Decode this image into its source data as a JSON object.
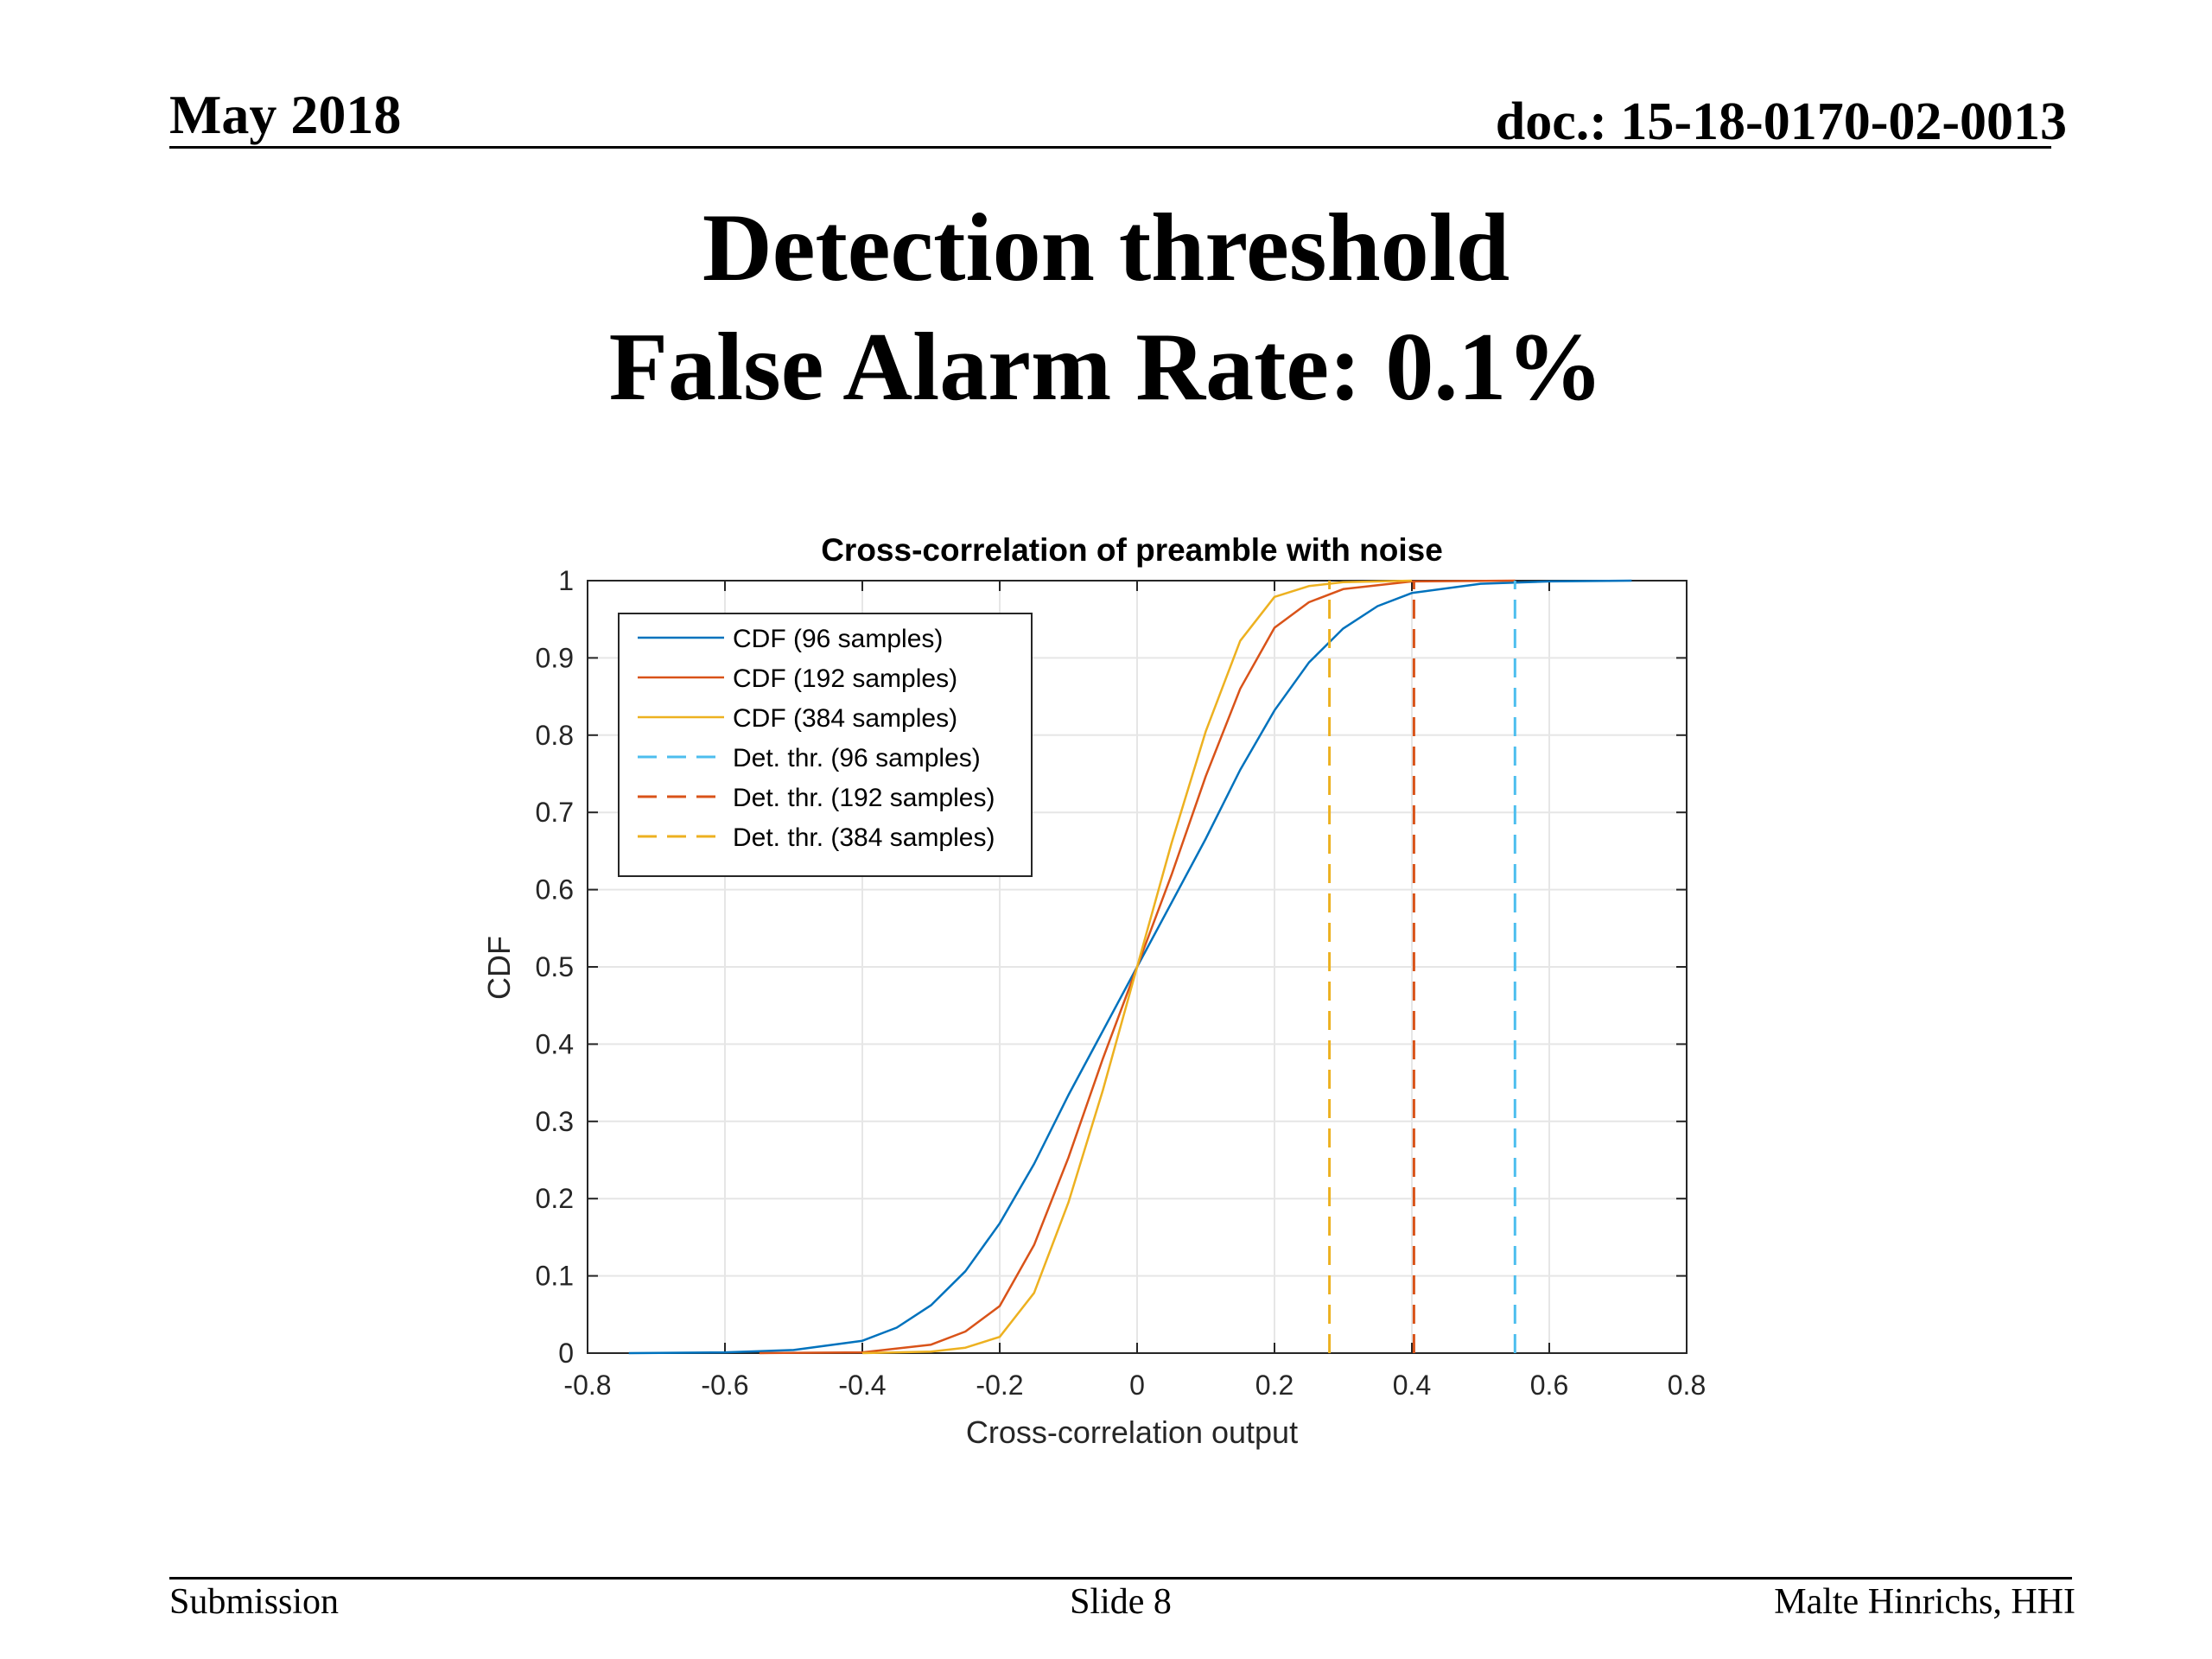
{
  "header": {
    "date": "May 2018",
    "doc": "doc.: 15-18-0170-02-0013"
  },
  "slide_title": {
    "line1": "Detection threshold",
    "line2": "False Alarm Rate: 0.1%"
  },
  "footer": {
    "left": "Submission",
    "center": "Slide 8",
    "right": "Malte Hinrichs, HHI"
  },
  "chart_data": {
    "type": "line",
    "title": "Cross-correlation of preamble with noise",
    "xlabel": "Cross-correlation output",
    "ylabel": "CDF",
    "xlim": [
      -0.8,
      0.8
    ],
    "ylim": [
      0,
      1
    ],
    "xticks": [
      -0.8,
      -0.6,
      -0.4,
      -0.2,
      0,
      0.2,
      0.4,
      0.6,
      0.8
    ],
    "xtick_labels": [
      "-0.8",
      "-0.6",
      "-0.4",
      "-0.2",
      "0",
      "0.2",
      "0.4",
      "0.6",
      "0.8"
    ],
    "yticks": [
      0,
      0.1,
      0.2,
      0.3,
      0.4,
      0.5,
      0.6,
      0.7,
      0.8,
      0.9,
      1
    ],
    "ytick_labels": [
      "0",
      "0.1",
      "0.2",
      "0.3",
      "0.4",
      "0.5",
      "0.6",
      "0.7",
      "0.8",
      "0.9",
      "1"
    ],
    "grid": true,
    "legend_position": "top-left",
    "series": [
      {
        "name": "CDF (96 samples)",
        "color": "#0072BD",
        "style": "solid",
        "x": [
          -0.74,
          -0.6,
          -0.5,
          -0.4,
          -0.35,
          -0.3,
          -0.25,
          -0.2,
          -0.15,
          -0.1,
          -0.05,
          0,
          0.05,
          0.1,
          0.15,
          0.2,
          0.25,
          0.3,
          0.35,
          0.4,
          0.5,
          0.6,
          0.72
        ],
        "y": [
          0,
          0.001,
          0.004,
          0.016,
          0.033,
          0.062,
          0.106,
          0.168,
          0.245,
          0.334,
          0.417,
          0.5,
          0.583,
          0.666,
          0.755,
          0.832,
          0.894,
          0.938,
          0.967,
          0.984,
          0.996,
          0.999,
          1
        ]
      },
      {
        "name": "CDF (192 samples)",
        "color": "#D95319",
        "style": "solid",
        "x": [
          -0.55,
          -0.4,
          -0.3,
          -0.25,
          -0.2,
          -0.15,
          -0.1,
          -0.05,
          0,
          0.05,
          0.1,
          0.15,
          0.2,
          0.25,
          0.3,
          0.4,
          0.55
        ],
        "y": [
          0,
          0.001,
          0.011,
          0.028,
          0.061,
          0.14,
          0.253,
          0.381,
          0.5,
          0.619,
          0.747,
          0.86,
          0.939,
          0.972,
          0.989,
          0.999,
          1
        ]
      },
      {
        "name": "CDF (384 samples)",
        "color": "#EDB120",
        "style": "solid",
        "x": [
          -0.4,
          -0.3,
          -0.25,
          -0.2,
          -0.15,
          -0.1,
          -0.05,
          0,
          0.05,
          0.1,
          0.15,
          0.2,
          0.25,
          0.3,
          0.4
        ],
        "y": [
          0,
          0.002,
          0.007,
          0.021,
          0.078,
          0.195,
          0.34,
          0.5,
          0.66,
          0.805,
          0.922,
          0.979,
          0.993,
          0.998,
          1
        ]
      },
      {
        "name": "Det. thr. (96 samples)",
        "color": "#4DBEEE",
        "style": "dashed",
        "x": [
          0.55,
          0.55
        ],
        "y": [
          0,
          1
        ]
      },
      {
        "name": "Det. thr. (192 samples)",
        "color": "#D95319",
        "style": "dashed",
        "x": [
          0.403,
          0.403
        ],
        "y": [
          0,
          1
        ]
      },
      {
        "name": "Det. thr. (384 samples)",
        "color": "#EDB120",
        "style": "dashed",
        "x": [
          0.28,
          0.28
        ],
        "y": [
          0,
          1
        ]
      }
    ]
  }
}
